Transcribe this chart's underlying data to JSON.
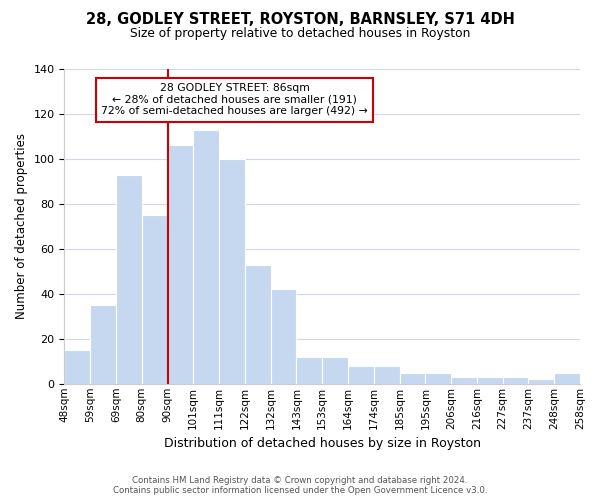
{
  "title": "28, GODLEY STREET, ROYSTON, BARNSLEY, S71 4DH",
  "subtitle": "Size of property relative to detached houses in Royston",
  "xlabel": "Distribution of detached houses by size in Royston",
  "ylabel": "Number of detached properties",
  "bins": [
    "48sqm",
    "59sqm",
    "69sqm",
    "80sqm",
    "90sqm",
    "101sqm",
    "111sqm",
    "122sqm",
    "132sqm",
    "143sqm",
    "153sqm",
    "164sqm",
    "174sqm",
    "185sqm",
    "195sqm",
    "206sqm",
    "216sqm",
    "227sqm",
    "237sqm",
    "248sqm",
    "258sqm"
  ],
  "values": [
    15,
    35,
    93,
    75,
    106,
    113,
    100,
    53,
    42,
    12,
    12,
    8,
    8,
    5,
    5,
    3,
    3,
    3,
    2,
    5
  ],
  "bar_color": "#c5d8f0",
  "vline_color": "#cc0000",
  "annotation_title": "28 GODLEY STREET: 86sqm",
  "annotation_line1": "← 28% of detached houses are smaller (191)",
  "annotation_line2": "72% of semi-detached houses are larger (492) →",
  "annotation_box_edge": "#cc0000",
  "ylim": [
    0,
    140
  ],
  "yticks": [
    0,
    20,
    40,
    60,
    80,
    100,
    120,
    140
  ],
  "footer1": "Contains HM Land Registry data © Crown copyright and database right 2024.",
  "footer2": "Contains public sector information licensed under the Open Government Licence v3.0.",
  "background_color": "#ffffff",
  "grid_color": "#d0d8e8"
}
